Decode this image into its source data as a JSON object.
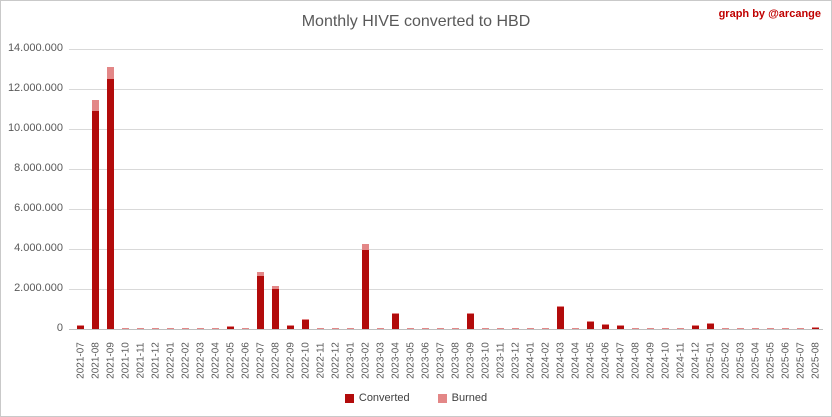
{
  "header": {
    "title": "Monthly HIVE converted to HBD",
    "credit": "graph by @arcange"
  },
  "colors": {
    "converted": "#b20b0b",
    "burned": "#e38787",
    "gridline": "#d9d9d9",
    "axis_line": "#bfbfbf",
    "text": "#595959",
    "credit_red": "#c00000"
  },
  "legend": {
    "items": [
      {
        "label": "Converted",
        "color": "#b20b0b"
      },
      {
        "label": "Burned",
        "color": "#e38787"
      }
    ]
  },
  "chart_data": {
    "type": "bar",
    "stacked": true,
    "title": "Monthly HIVE converted to HBD",
    "xlabel": "",
    "ylabel": "",
    "ylim": [
      0,
      14000000
    ],
    "grid": true,
    "legend_position": "bottom",
    "y_tick_labels": [
      "14.000.000",
      "12.000.000",
      "10.000.000",
      "8.000.000",
      "6.000.000",
      "4.000.000",
      "2.000.000",
      "0"
    ],
    "y_tick_values": [
      14000000,
      12000000,
      10000000,
      8000000,
      6000000,
      4000000,
      2000000,
      0
    ],
    "categories": [
      "2021-07",
      "2021-08",
      "2021-09",
      "2021-10",
      "2021-11",
      "2021-12",
      "2022-01",
      "2022-02",
      "2022-03",
      "2022-04",
      "2022-05",
      "2022-06",
      "2022-07",
      "2022-08",
      "2022-09",
      "2022-10",
      "2022-11",
      "2022-12",
      "2023-01",
      "2023-02",
      "2023-03",
      "2023-04",
      "2023-05",
      "2023-06",
      "2023-07",
      "2023-08",
      "2023-09",
      "2023-10",
      "2023-11",
      "2023-12",
      "2024-01",
      "2024-02",
      "2024-03",
      "2024-04",
      "2024-05",
      "2024-06",
      "2024-07",
      "2024-08",
      "2024-09",
      "2024-10",
      "2024-11",
      "2024-12",
      "2025-01",
      "2025-02",
      "2025-03",
      "2025-04",
      "2025-05",
      "2025-06",
      "2025-07",
      "2025-08"
    ],
    "series": [
      {
        "name": "Converted",
        "color": "#b20b0b",
        "values": [
          150000,
          10900000,
          12500000,
          0,
          0,
          0,
          0,
          0,
          0,
          0,
          100000,
          0,
          2650000,
          2000000,
          160000,
          430000,
          0,
          0,
          0,
          3950000,
          0,
          770000,
          0,
          0,
          0,
          0,
          760000,
          0,
          0,
          0,
          0,
          0,
          1100000,
          0,
          330000,
          200000,
          130000,
          0,
          0,
          0,
          0,
          130000,
          260000,
          0,
          0,
          0,
          0,
          0,
          0,
          60000
        ]
      },
      {
        "name": "Burned",
        "color": "#e38787",
        "values": [
          50000,
          550000,
          600000,
          50000,
          40000,
          40000,
          40000,
          40000,
          50000,
          50000,
          40000,
          50000,
          200000,
          130000,
          40000,
          40000,
          40000,
          40000,
          40000,
          300000,
          50000,
          50000,
          40000,
          40000,
          40000,
          40000,
          50000,
          40000,
          40000,
          40000,
          40000,
          40000,
          60000,
          40000,
          70000,
          50000,
          40000,
          40000,
          40000,
          40000,
          40000,
          40000,
          50000,
          40000,
          40000,
          40000,
          40000,
          40000,
          40000,
          20000
        ]
      }
    ]
  }
}
